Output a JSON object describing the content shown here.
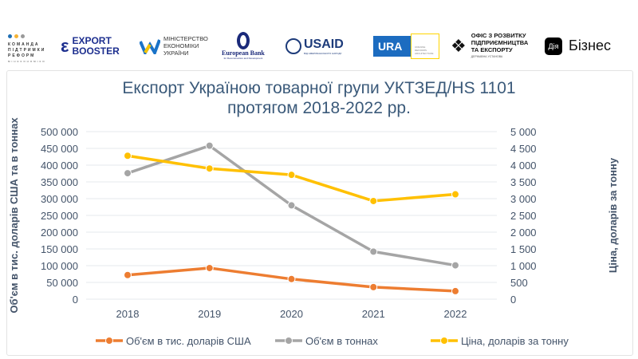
{
  "logos": {
    "komanda": {
      "lines": [
        "КОМАНДА",
        "ПІДТРИМКИ",
        "РЕФОРМ"
      ],
      "sub": "МІНЕКОНОМІКИ"
    },
    "export_booster": [
      "EXPORT",
      "BOOSTER"
    ],
    "ministry": [
      "МІНІСТЕРСТВО",
      "ЕКОНОМІКИ",
      "УКРАЇНИ"
    ],
    "ebrd": {
      "name": "European Bank",
      "sub": "for Reconstruction and Development"
    },
    "usaid": {
      "name": "USAID",
      "sub": "ВІД АМЕРИКАНСЬКОГО НАРОДУ"
    },
    "ura": {
      "name": "URA",
      "sub": "UKRAINE REFORMS ARCHITECTURE"
    },
    "office": {
      "lines": [
        "ОФІС З РОЗВИТКУ",
        "ПІДПРИЄМНИЦТВА",
        "ТА ЕКСПОРТУ"
      ],
      "sub": "ДЕРЖАВНА УСТАНОВА"
    },
    "diia": {
      "badge": "Дія",
      "name": "Бізнес"
    }
  },
  "chart_data": {
    "type": "line",
    "title": [
      "Експорт Україною товарної групи УКТЗЕД/HS 1101",
      "протягом 2018-2022 рр."
    ],
    "categories": [
      "2018",
      "2019",
      "2020",
      "2021",
      "2022"
    ],
    "ylabel": "Об'єм в тис. доларів США та в тоннах",
    "y2label": "Ціна, доларів за тонну",
    "ylim": [
      0,
      500000
    ],
    "y2lim": [
      0,
      5000
    ],
    "yticks": [
      "0",
      "50 000",
      "100 000",
      "150 000",
      "200 000",
      "250 000",
      "300 000",
      "350 000",
      "400 000",
      "450 000",
      "500 000"
    ],
    "y2ticks": [
      "0",
      "500",
      "1 000",
      "1 500",
      "2 000",
      "2 500",
      "3 000",
      "3 500",
      "4 000",
      "4 500",
      "5 000"
    ],
    "grid": true,
    "legend": "bottom",
    "series": [
      {
        "name": "Об'єм в тис. доларів США",
        "axis": "left",
        "color": "#ed7d31",
        "values": [
          72000,
          93000,
          60000,
          36000,
          24000
        ]
      },
      {
        "name": "Об'єм в тоннах",
        "axis": "left",
        "color": "#a5a5a5",
        "values": [
          376000,
          458000,
          280000,
          142000,
          101000
        ]
      },
      {
        "name": "Ціна, доларів за тонну",
        "axis": "right",
        "color": "#ffc000",
        "values": [
          4280,
          3900,
          3710,
          2930,
          3130
        ]
      }
    ]
  }
}
